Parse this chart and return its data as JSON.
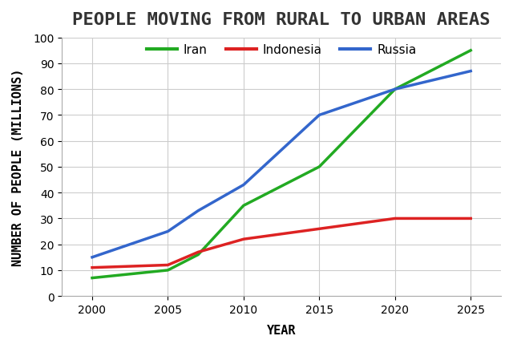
{
  "title": "PEOPLE MOVING FROM RURAL TO URBAN AREAS",
  "xlabel": "YEAR",
  "ylabel": "NUMBER OF PEOPLE (MILLIONS)",
  "years": [
    2000,
    2005,
    2007,
    2010,
    2015,
    2020,
    2025
  ],
  "iran": [
    7,
    10,
    16,
    35,
    50,
    80,
    95
  ],
  "indonesia": [
    11,
    12,
    17,
    22,
    26,
    30,
    30
  ],
  "russia": [
    15,
    25,
    33,
    43,
    70,
    80,
    87
  ],
  "iran_color": "#22aa22",
  "indonesia_color": "#dd2222",
  "russia_color": "#3366cc",
  "linewidth": 2.5,
  "ylim": [
    0,
    100
  ],
  "yticks": [
    0,
    10,
    20,
    30,
    40,
    50,
    60,
    70,
    80,
    90,
    100
  ],
  "xticks": [
    2000,
    2005,
    2010,
    2015,
    2020,
    2025
  ],
  "background_color": "#ffffff",
  "grid_color": "#cccccc",
  "title_fontsize": 16,
  "axis_label_fontsize": 11,
  "tick_fontsize": 10,
  "legend_fontsize": 11
}
